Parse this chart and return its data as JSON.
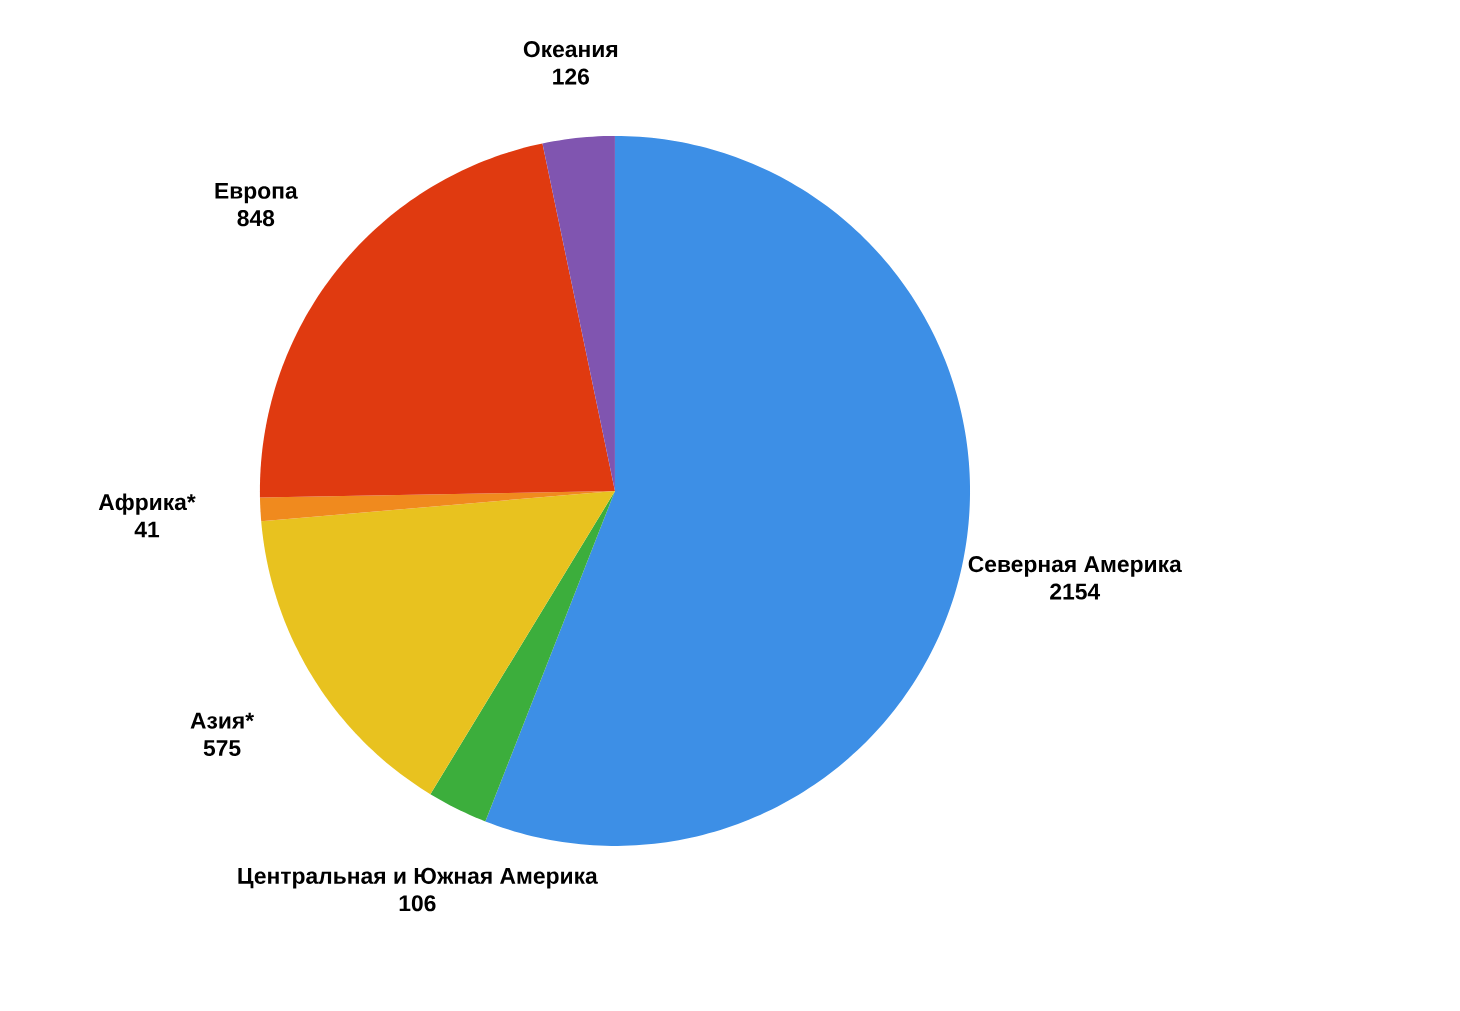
{
  "chart_data": {
    "type": "pie",
    "categories": [
      "Северная Америка",
      "Центральная и Южная Америка",
      "Азия*",
      "Африка*",
      "Европа",
      "Океания"
    ],
    "values": [
      2154,
      106,
      575,
      41,
      848,
      126
    ],
    "colors": [
      "#3d8fe6",
      "#3cae3c",
      "#e8c21f",
      "#f08a1e",
      "#e03a10",
      "#8055b0"
    ],
    "data_labels": true
  }
}
